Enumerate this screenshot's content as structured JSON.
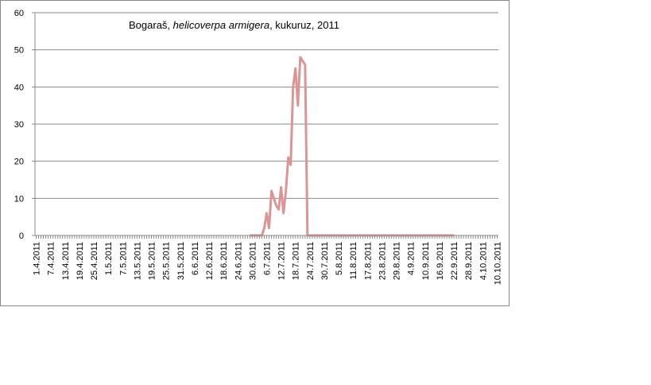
{
  "chart_data": {
    "type": "line",
    "title_parts": [
      "Bogaraš, ",
      "helicoverpa armigera",
      ", kukuruz, 2011"
    ],
    "categories": [
      "1.4.2011",
      null,
      null,
      null,
      null,
      null,
      "7.4.2011",
      null,
      null,
      null,
      null,
      null,
      "13.4.2011",
      null,
      null,
      null,
      null,
      null,
      "19.4.2011",
      null,
      null,
      null,
      null,
      null,
      "25.4.2011",
      null,
      null,
      null,
      null,
      null,
      "1.5.2011",
      null,
      null,
      null,
      null,
      null,
      "7.5.2011",
      null,
      null,
      null,
      null,
      null,
      "13.5.2011",
      null,
      null,
      null,
      null,
      null,
      "19.5.2011",
      null,
      null,
      null,
      null,
      null,
      "25.5.2011",
      null,
      null,
      null,
      null,
      null,
      "31.5.2011",
      null,
      null,
      null,
      null,
      null,
      "6.6.2011",
      null,
      null,
      null,
      null,
      null,
      "12.6.2011",
      null,
      null,
      null,
      null,
      null,
      "18.6.2011",
      null,
      null,
      null,
      null,
      null,
      "24.6.2011",
      null,
      null,
      null,
      null,
      null,
      "30.6.2011",
      null,
      null,
      null,
      null,
      null,
      "6.7.2011",
      null,
      null,
      null,
      null,
      null,
      "12.7.2011",
      null,
      null,
      null,
      null,
      null,
      "18.7.2011",
      null,
      null,
      null,
      null,
      null,
      "24.7.2011",
      null,
      null,
      null,
      null,
      null,
      "30.7.2011",
      null,
      null,
      null,
      null,
      null,
      "5.8.2011",
      null,
      null,
      null,
      null,
      null,
      "11.8.2011",
      null,
      null,
      null,
      null,
      null,
      "17.8.2011",
      null,
      null,
      null,
      null,
      null,
      "23.8.2011",
      null,
      null,
      null,
      null,
      null,
      "29.8.2011",
      null,
      null,
      null,
      null,
      null,
      "4.9.2011",
      null,
      null,
      null,
      null,
      null,
      "10.9.2011",
      null,
      null,
      null,
      null,
      null,
      "16.9.2011",
      null,
      null,
      null,
      null,
      null,
      "22.9.2011",
      null,
      null,
      null,
      null,
      null,
      "28.9.2011",
      null,
      null,
      null,
      null,
      null,
      "4.10.2011",
      null,
      null,
      null,
      null,
      null,
      "10.10.2011"
    ],
    "values": [
      null,
      null,
      null,
      null,
      null,
      null,
      null,
      null,
      null,
      null,
      null,
      null,
      null,
      null,
      null,
      null,
      null,
      null,
      null,
      null,
      null,
      null,
      null,
      null,
      null,
      null,
      null,
      null,
      null,
      null,
      null,
      null,
      null,
      null,
      null,
      null,
      null,
      null,
      null,
      null,
      null,
      null,
      null,
      null,
      null,
      null,
      null,
      null,
      null,
      null,
      null,
      null,
      null,
      null,
      null,
      null,
      null,
      null,
      null,
      null,
      null,
      null,
      null,
      null,
      null,
      null,
      null,
      null,
      null,
      null,
      null,
      null,
      null,
      null,
      null,
      null,
      null,
      null,
      null,
      null,
      null,
      null,
      null,
      null,
      null,
      null,
      null,
      null,
      null,
      0,
      0,
      0,
      0,
      0,
      0,
      2,
      6,
      2,
      12,
      10,
      8,
      7,
      13,
      6,
      12,
      21,
      19,
      40,
      45,
      35,
      48,
      47,
      46,
      0,
      0,
      0,
      0,
      0,
      0,
      0,
      0,
      0,
      0,
      0,
      0,
      0,
      0,
      0,
      0,
      0,
      0,
      0,
      0,
      0,
      0,
      0,
      0,
      0,
      0,
      0,
      0,
      0,
      0,
      0,
      0,
      0,
      0,
      0,
      0,
      0,
      0,
      0,
      0,
      0,
      0,
      0,
      0,
      0,
      0,
      0,
      0,
      0,
      0,
      0,
      0,
      0,
      0,
      0,
      0,
      0,
      0,
      0,
      0,
      0,
      0,
      null,
      null,
      null,
      null,
      null,
      null,
      null,
      null,
      null,
      null,
      null,
      null,
      null,
      null,
      null,
      null,
      null,
      null
    ],
    "color": "#d99694",
    "ylim": [
      0,
      60
    ],
    "yticks": [
      0,
      10,
      20,
      30,
      40,
      50,
      60
    ],
    "grid": true
  }
}
